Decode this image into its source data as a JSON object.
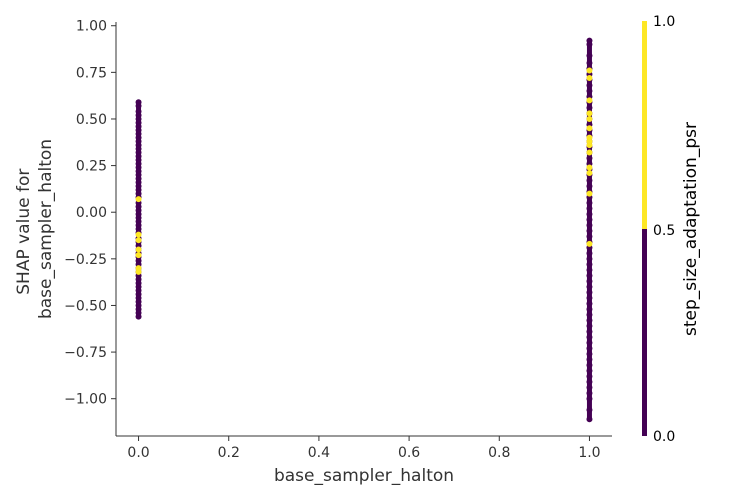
{
  "chart_data": {
    "type": "scatter",
    "title": "",
    "xlabel": "base_sampler_halton",
    "ylabel": [
      "SHAP value for",
      "base_sampler_halton"
    ],
    "xlim": [
      -0.05,
      1.05
    ],
    "ylim": [
      -1.2,
      1.02
    ],
    "x_ticks": [
      0.0,
      0.2,
      0.4,
      0.6,
      0.8,
      1.0
    ],
    "x_tick_labels": [
      "0.0",
      "0.2",
      "0.4",
      "0.6",
      "0.8",
      "1.0"
    ],
    "y_ticks": [
      1.0,
      0.75,
      0.5,
      0.25,
      0.0,
      -0.25,
      -0.5,
      -0.75,
      -1.0
    ],
    "y_tick_labels": [
      "1.00",
      "0.75",
      "0.50",
      "0.25",
      "0.00",
      "−0.25",
      "−0.50",
      "−0.75",
      "−1.00"
    ],
    "grid": false,
    "colorbar": {
      "label": "step_size_adaptation_psr",
      "ticks": [
        "1.0",
        "0.5",
        "0.0"
      ],
      "low_color": "#440154",
      "high_color": "#fde725"
    },
    "series": [
      {
        "x": 0.0,
        "color_value": 0.0,
        "y": [
          0.59,
          0.57,
          0.54,
          0.52,
          0.5,
          0.48,
          0.46,
          0.44,
          0.42,
          0.4,
          0.38,
          0.36,
          0.34,
          0.32,
          0.3,
          0.28,
          0.26,
          0.24,
          0.22,
          0.2,
          0.18,
          0.16,
          0.14,
          0.12,
          0.1,
          0.08,
          0.05,
          0.03,
          0.01,
          -0.01,
          -0.03,
          -0.05,
          -0.07,
          -0.09,
          -0.11,
          -0.14,
          -0.16,
          -0.18,
          -0.2,
          -0.22,
          -0.24,
          -0.26,
          -0.28,
          -0.3,
          -0.32,
          -0.34,
          -0.36,
          -0.38,
          -0.4,
          -0.42,
          -0.44,
          -0.46,
          -0.48,
          -0.5,
          -0.52,
          -0.54,
          -0.56
        ]
      },
      {
        "x": 0.0,
        "color_value": 1.0,
        "y": [
          0.07,
          -0.12,
          -0.15,
          -0.2,
          -0.23,
          -0.3,
          -0.32
        ]
      },
      {
        "x": 1.0,
        "color_value": 0.0,
        "y": [
          0.92,
          0.9,
          0.84,
          0.8,
          0.77,
          0.74,
          0.71,
          0.68,
          0.65,
          0.62,
          0.59,
          0.56,
          0.53,
          0.5,
          0.47,
          0.44,
          0.41,
          0.38,
          0.35,
          0.32,
          0.29,
          0.26,
          0.23,
          0.2,
          0.17,
          0.14,
          0.11,
          0.08,
          0.05,
          0.02,
          -0.01,
          -0.04,
          -0.07,
          -0.1,
          -0.13,
          -0.16,
          -0.19,
          -0.22,
          -0.25,
          -0.28,
          -0.31,
          -0.34,
          -0.37,
          -0.4,
          -0.43,
          -0.46,
          -0.49,
          -0.52,
          -0.55,
          -0.58,
          -0.61,
          -0.64,
          -0.67,
          -0.7,
          -0.73,
          -0.76,
          -0.79,
          -0.82,
          -0.85,
          -0.88,
          -0.91,
          -0.94,
          -0.97,
          -1.0,
          -1.06,
          -1.11
        ]
      },
      {
        "x": 1.0,
        "color_value": 1.0,
        "y": [
          0.76,
          0.72,
          0.6,
          0.53,
          0.5,
          0.45,
          0.4,
          0.38,
          0.36,
          0.32,
          0.24,
          0.21,
          0.1,
          -0.17
        ]
      }
    ]
  }
}
